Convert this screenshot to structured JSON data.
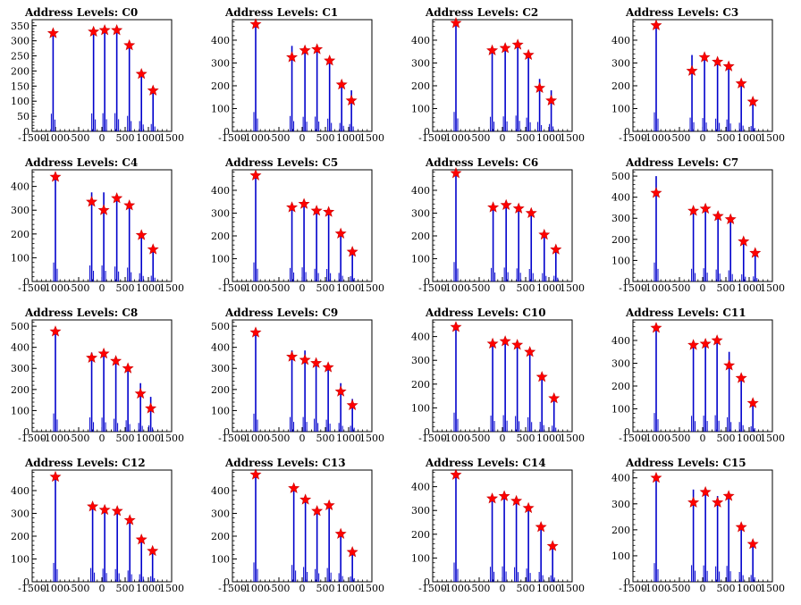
{
  "chart_data": [
    {
      "type": "bar",
      "title": "Address Levels: C0",
      "xlim": [
        -1500,
        1500
      ],
      "ylim": [
        0,
        370
      ],
      "yticks": [
        0,
        50,
        100,
        150,
        200,
        250,
        300,
        350
      ],
      "xticks": [
        -1500,
        -1000,
        -500,
        0,
        500,
        1000,
        1500
      ],
      "peaks": [
        {
          "x": -1050,
          "y": 325,
          "marker": 325
        },
        {
          "x": -180,
          "y": 330,
          "marker": 330
        },
        {
          "x": 60,
          "y": 335,
          "marker": 335
        },
        {
          "x": 320,
          "y": 335,
          "marker": 335
        },
        {
          "x": 590,
          "y": 285,
          "marker": 285
        },
        {
          "x": 850,
          "y": 190,
          "marker": 190
        },
        {
          "x": 1100,
          "y": 135,
          "marker": 135
        }
      ]
    },
    {
      "type": "bar",
      "title": "Address Levels: C1",
      "xlim": [
        -1500,
        1500
      ],
      "ylim": [
        0,
        490
      ],
      "yticks": [
        0,
        100,
        200,
        300,
        400
      ],
      "xticks": [
        -1500,
        -1000,
        -500,
        0,
        500,
        1000,
        1500
      ],
      "peaks": [
        {
          "x": -1000,
          "y": 470,
          "marker": 470
        },
        {
          "x": -220,
          "y": 375,
          "marker": 325
        },
        {
          "x": 60,
          "y": 355,
          "marker": 355
        },
        {
          "x": 320,
          "y": 360,
          "marker": 360
        },
        {
          "x": 590,
          "y": 310,
          "marker": 310
        },
        {
          "x": 850,
          "y": 205,
          "marker": 205
        },
        {
          "x": 1060,
          "y": 180,
          "marker": 135
        }
      ]
    },
    {
      "type": "bar",
      "title": "Address Levels: C2",
      "xlim": [
        -1500,
        1500
      ],
      "ylim": [
        0,
        490
      ],
      "yticks": [
        0,
        100,
        200,
        300,
        400
      ],
      "xticks": [
        -1500,
        -1000,
        -500,
        0,
        500,
        1000,
        1500
      ],
      "peaks": [
        {
          "x": -1000,
          "y": 475,
          "marker": 475
        },
        {
          "x": -220,
          "y": 355,
          "marker": 355
        },
        {
          "x": 60,
          "y": 365,
          "marker": 365
        },
        {
          "x": 330,
          "y": 385,
          "marker": 380
        },
        {
          "x": 560,
          "y": 335,
          "marker": 335
        },
        {
          "x": 800,
          "y": 230,
          "marker": 190
        },
        {
          "x": 1050,
          "y": 180,
          "marker": 135
        }
      ]
    },
    {
      "type": "bar",
      "title": "Address Levels: C3",
      "xlim": [
        -1500,
        1500
      ],
      "ylim": [
        0,
        490
      ],
      "yticks": [
        0,
        100,
        200,
        300,
        400
      ],
      "xticks": [
        -1500,
        -1000,
        -500,
        0,
        500,
        1000,
        1500
      ],
      "peaks": [
        {
          "x": -1000,
          "y": 465,
          "marker": 465
        },
        {
          "x": -230,
          "y": 335,
          "marker": 265
        },
        {
          "x": 40,
          "y": 325,
          "marker": 325
        },
        {
          "x": 320,
          "y": 310,
          "marker": 305
        },
        {
          "x": 560,
          "y": 290,
          "marker": 285
        },
        {
          "x": 830,
          "y": 210,
          "marker": 210
        },
        {
          "x": 1080,
          "y": 130,
          "marker": 130
        }
      ]
    },
    {
      "type": "bar",
      "title": "Address Levels: C4",
      "xlim": [
        -1500,
        1500
      ],
      "ylim": [
        0,
        470
      ],
      "yticks": [
        0,
        100,
        200,
        300,
        400
      ],
      "xticks": [
        -1500,
        -1000,
        -500,
        0,
        500,
        1000,
        1500
      ],
      "peaks": [
        {
          "x": -1000,
          "y": 445,
          "marker": 440
        },
        {
          "x": -220,
          "y": 375,
          "marker": 335
        },
        {
          "x": 40,
          "y": 375,
          "marker": 300
        },
        {
          "x": 320,
          "y": 350,
          "marker": 350
        },
        {
          "x": 590,
          "y": 325,
          "marker": 320
        },
        {
          "x": 850,
          "y": 195,
          "marker": 195
        },
        {
          "x": 1100,
          "y": 135,
          "marker": 135
        }
      ]
    },
    {
      "type": "bar",
      "title": "Address Levels: C5",
      "xlim": [
        -1500,
        1500
      ],
      "ylim": [
        0,
        490
      ],
      "yticks": [
        0,
        100,
        200,
        300,
        400
      ],
      "xticks": [
        -1500,
        -1000,
        -500,
        0,
        500,
        1000,
        1500
      ],
      "peaks": [
        {
          "x": -1000,
          "y": 465,
          "marker": 465
        },
        {
          "x": -220,
          "y": 330,
          "marker": 325
        },
        {
          "x": 40,
          "y": 345,
          "marker": 340
        },
        {
          "x": 310,
          "y": 310,
          "marker": 310
        },
        {
          "x": 570,
          "y": 305,
          "marker": 305
        },
        {
          "x": 830,
          "y": 210,
          "marker": 210
        },
        {
          "x": 1080,
          "y": 130,
          "marker": 130
        }
      ]
    },
    {
      "type": "bar",
      "title": "Address Levels: C6",
      "xlim": [
        -1500,
        1500
      ],
      "ylim": [
        0,
        490
      ],
      "yticks": [
        0,
        100,
        200,
        300,
        400
      ],
      "xticks": [
        -1500,
        -1000,
        -500,
        0,
        500,
        1000,
        1500
      ],
      "peaks": [
        {
          "x": -1000,
          "y": 475,
          "marker": 475
        },
        {
          "x": -200,
          "y": 330,
          "marker": 325
        },
        {
          "x": 80,
          "y": 340,
          "marker": 335
        },
        {
          "x": 350,
          "y": 320,
          "marker": 320
        },
        {
          "x": 620,
          "y": 305,
          "marker": 300
        },
        {
          "x": 900,
          "y": 205,
          "marker": 205
        },
        {
          "x": 1150,
          "y": 140,
          "marker": 140
        }
      ]
    },
    {
      "type": "bar",
      "title": "Address Levels: C7",
      "xlim": [
        -1500,
        1500
      ],
      "ylim": [
        0,
        530
      ],
      "yticks": [
        0,
        100,
        200,
        300,
        400,
        500
      ],
      "xticks": [
        -1500,
        -1000,
        -500,
        0,
        500,
        1000,
        1500
      ],
      "peaks": [
        {
          "x": -1000,
          "y": 500,
          "marker": 420
        },
        {
          "x": -200,
          "y": 335,
          "marker": 335
        },
        {
          "x": 60,
          "y": 350,
          "marker": 345
        },
        {
          "x": 330,
          "y": 315,
          "marker": 310
        },
        {
          "x": 600,
          "y": 295,
          "marker": 295
        },
        {
          "x": 880,
          "y": 190,
          "marker": 190
        },
        {
          "x": 1130,
          "y": 135,
          "marker": 135
        }
      ]
    },
    {
      "type": "bar",
      "title": "Address Levels: C8",
      "xlim": [
        -1500,
        1500
      ],
      "ylim": [
        0,
        530
      ],
      "yticks": [
        0,
        100,
        200,
        300,
        400,
        500
      ],
      "xticks": [
        -1500,
        -1000,
        -500,
        0,
        500,
        1000,
        1500
      ],
      "peaks": [
        {
          "x": -1000,
          "y": 480,
          "marker": 475
        },
        {
          "x": -220,
          "y": 375,
          "marker": 350
        },
        {
          "x": 40,
          "y": 370,
          "marker": 370
        },
        {
          "x": 300,
          "y": 340,
          "marker": 335
        },
        {
          "x": 560,
          "y": 300,
          "marker": 300
        },
        {
          "x": 830,
          "y": 230,
          "marker": 180
        },
        {
          "x": 1050,
          "y": 165,
          "marker": 110
        }
      ]
    },
    {
      "type": "bar",
      "title": "Address Levels: C9",
      "xlim": [
        -1500,
        1500
      ],
      "ylim": [
        0,
        530
      ],
      "yticks": [
        0,
        100,
        200,
        300,
        400,
        500
      ],
      "xticks": [
        -1500,
        -1000,
        -500,
        0,
        500,
        1000,
        1500
      ],
      "peaks": [
        {
          "x": -1000,
          "y": 475,
          "marker": 470
        },
        {
          "x": -220,
          "y": 385,
          "marker": 355
        },
        {
          "x": 60,
          "y": 385,
          "marker": 340
        },
        {
          "x": 300,
          "y": 340,
          "marker": 325
        },
        {
          "x": 560,
          "y": 315,
          "marker": 305
        },
        {
          "x": 830,
          "y": 230,
          "marker": 190
        },
        {
          "x": 1080,
          "y": 155,
          "marker": 125
        }
      ]
    },
    {
      "type": "bar",
      "title": "Address Levels: C10",
      "xlim": [
        -1500,
        1500
      ],
      "ylim": [
        0,
        470
      ],
      "yticks": [
        0,
        100,
        200,
        300,
        400
      ],
      "xticks": [
        -1500,
        -1000,
        -500,
        0,
        500,
        1000,
        1500
      ],
      "peaks": [
        {
          "x": -1000,
          "y": 445,
          "marker": 440
        },
        {
          "x": -210,
          "y": 375,
          "marker": 370
        },
        {
          "x": 60,
          "y": 385,
          "marker": 380
        },
        {
          "x": 320,
          "y": 365,
          "marker": 365
        },
        {
          "x": 590,
          "y": 335,
          "marker": 335
        },
        {
          "x": 850,
          "y": 230,
          "marker": 230
        },
        {
          "x": 1110,
          "y": 140,
          "marker": 140
        }
      ]
    },
    {
      "type": "bar",
      "title": "Address Levels: C11",
      "xlim": [
        -1500,
        1500
      ],
      "ylim": [
        0,
        490
      ],
      "yticks": [
        0,
        100,
        200,
        300,
        400
      ],
      "xticks": [
        -1500,
        -1000,
        -500,
        0,
        500,
        1000,
        1500
      ],
      "peaks": [
        {
          "x": -1000,
          "y": 455,
          "marker": 455
        },
        {
          "x": -200,
          "y": 385,
          "marker": 380
        },
        {
          "x": 60,
          "y": 390,
          "marker": 385
        },
        {
          "x": 310,
          "y": 400,
          "marker": 400
        },
        {
          "x": 570,
          "y": 350,
          "marker": 290
        },
        {
          "x": 830,
          "y": 235,
          "marker": 235
        },
        {
          "x": 1080,
          "y": 130,
          "marker": 125
        }
      ]
    },
    {
      "type": "bar",
      "title": "Address Levels: C12",
      "xlim": [
        -1500,
        1500
      ],
      "ylim": [
        0,
        490
      ],
      "yticks": [
        0,
        100,
        200,
        300,
        400
      ],
      "xticks": [
        -1500,
        -1000,
        -500,
        0,
        500,
        1000,
        1500
      ],
      "peaks": [
        {
          "x": -1000,
          "y": 460,
          "marker": 460
        },
        {
          "x": -200,
          "y": 335,
          "marker": 330
        },
        {
          "x": 60,
          "y": 320,
          "marker": 315
        },
        {
          "x": 330,
          "y": 310,
          "marker": 310
        },
        {
          "x": 600,
          "y": 275,
          "marker": 270
        },
        {
          "x": 850,
          "y": 185,
          "marker": 185
        },
        {
          "x": 1090,
          "y": 135,
          "marker": 135
        }
      ]
    },
    {
      "type": "bar",
      "title": "Address Levels: C13",
      "xlim": [
        -1500,
        1500
      ],
      "ylim": [
        0,
        490
      ],
      "yticks": [
        0,
        100,
        200,
        300,
        400
      ],
      "xticks": [
        -1500,
        -1000,
        -500,
        0,
        500,
        1000,
        1500
      ],
      "peaks": [
        {
          "x": -1000,
          "y": 470,
          "marker": 470
        },
        {
          "x": -180,
          "y": 410,
          "marker": 410
        },
        {
          "x": 70,
          "y": 360,
          "marker": 360
        },
        {
          "x": 320,
          "y": 310,
          "marker": 310
        },
        {
          "x": 580,
          "y": 335,
          "marker": 335
        },
        {
          "x": 830,
          "y": 210,
          "marker": 210
        },
        {
          "x": 1080,
          "y": 130,
          "marker": 130
        }
      ]
    },
    {
      "type": "bar",
      "title": "Address Levels: C14",
      "xlim": [
        -1500,
        1500
      ],
      "ylim": [
        0,
        470
      ],
      "yticks": [
        0,
        100,
        200,
        300,
        400
      ],
      "xticks": [
        -1500,
        -1000,
        -500,
        0,
        500,
        1000,
        1500
      ],
      "peaks": [
        {
          "x": -1000,
          "y": 450,
          "marker": 450
        },
        {
          "x": -220,
          "y": 350,
          "marker": 350
        },
        {
          "x": 40,
          "y": 360,
          "marker": 360
        },
        {
          "x": 300,
          "y": 340,
          "marker": 340
        },
        {
          "x": 560,
          "y": 310,
          "marker": 310
        },
        {
          "x": 830,
          "y": 230,
          "marker": 230
        },
        {
          "x": 1080,
          "y": 150,
          "marker": 150
        }
      ]
    },
    {
      "type": "bar",
      "title": "Address Levels: C15",
      "xlim": [
        -1500,
        1500
      ],
      "ylim": [
        0,
        430
      ],
      "yticks": [
        0,
        100,
        200,
        300,
        400
      ],
      "xticks": [
        -1500,
        -1000,
        -500,
        0,
        500,
        1000,
        1500
      ],
      "peaks": [
        {
          "x": -1000,
          "y": 400,
          "marker": 400
        },
        {
          "x": -200,
          "y": 355,
          "marker": 305
        },
        {
          "x": 60,
          "y": 350,
          "marker": 345
        },
        {
          "x": 320,
          "y": 330,
          "marker": 305
        },
        {
          "x": 560,
          "y": 340,
          "marker": 330
        },
        {
          "x": 830,
          "y": 210,
          "marker": 210
        },
        {
          "x": 1080,
          "y": 145,
          "marker": 145
        }
      ]
    }
  ]
}
